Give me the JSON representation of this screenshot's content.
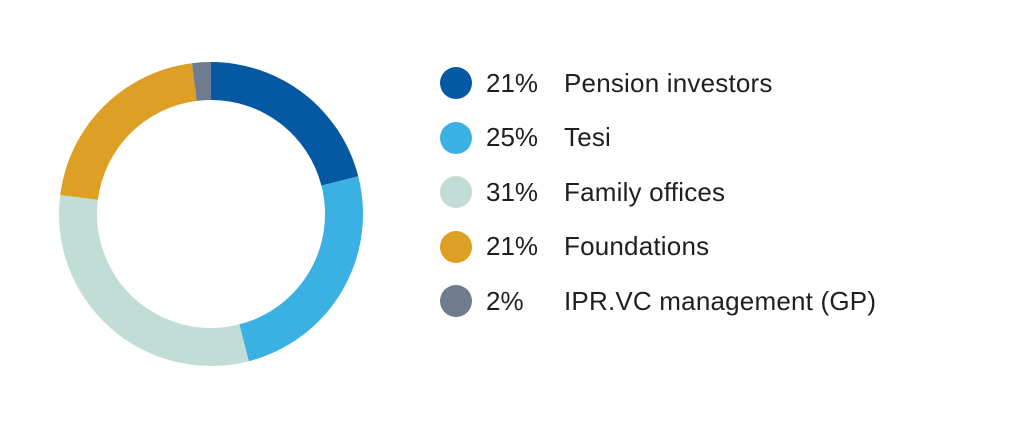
{
  "chart_data": {
    "type": "pie",
    "title": "",
    "donut": true,
    "legend_placement": "right",
    "slices": [
      {
        "percent_label": "21%",
        "label": "Pension investors",
        "value": 21,
        "color": "#0559a2"
      },
      {
        "percent_label": "25%",
        "label": "Tesi",
        "value": 25,
        "color": "#3bb0e3"
      },
      {
        "percent_label": "31%",
        "label": "Family offices",
        "value": 31,
        "color": "#c2ddd6"
      },
      {
        "percent_label": "21%",
        "label": "Foundations",
        "value": 21,
        "color": "#dea024"
      },
      {
        "percent_label": "2%",
        "label": "IPR.VC management (GP)",
        "value": 2,
        "color": "#6f7b8f"
      }
    ]
  }
}
